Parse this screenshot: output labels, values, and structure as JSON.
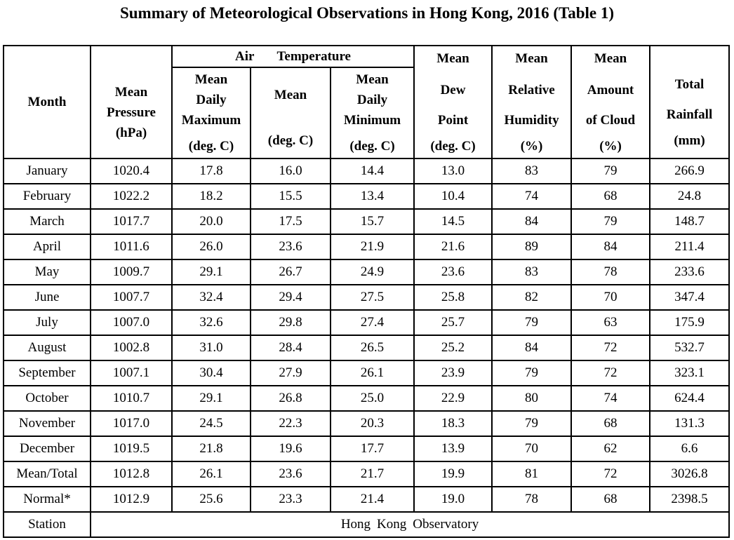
{
  "title": "Summary of Meteorological Observations in Hong Kong, 2016 (Table 1)",
  "headers": {
    "month": "Month",
    "pressure": [
      "Mean",
      "Pressure",
      "(hPa)"
    ],
    "air_temperature_words": [
      "Air",
      "Temperature"
    ],
    "max_temp": [
      "Mean",
      "Daily",
      "Maximum",
      "(deg. C)"
    ],
    "mean_temp": [
      "Mean",
      "(deg. C)"
    ],
    "min_temp": [
      "Mean",
      "Daily",
      "Minimum",
      "(deg. C)"
    ],
    "dew_point": [
      "Mean",
      "Dew",
      "Point",
      "(deg. C)"
    ],
    "humidity": [
      "Mean",
      "Relative",
      "Humidity",
      "(%)"
    ],
    "cloud": [
      "Mean",
      "Amount",
      "of Cloud",
      "(%)"
    ],
    "rainfall": [
      "Total",
      "Rainfall",
      "(mm)"
    ]
  },
  "rows": [
    [
      "January",
      "1020.4",
      "17.8",
      "16.0",
      "14.4",
      "13.0",
      "83",
      "79",
      "266.9"
    ],
    [
      "February",
      "1022.2",
      "18.2",
      "15.5",
      "13.4",
      "10.4",
      "74",
      "68",
      "24.8"
    ],
    [
      "March",
      "1017.7",
      "20.0",
      "17.5",
      "15.7",
      "14.5",
      "84",
      "79",
      "148.7"
    ],
    [
      "April",
      "1011.6",
      "26.0",
      "23.6",
      "21.9",
      "21.6",
      "89",
      "84",
      "211.4"
    ],
    [
      "May",
      "1009.7",
      "29.1",
      "26.7",
      "24.9",
      "23.6",
      "83",
      "78",
      "233.6"
    ],
    [
      "June",
      "1007.7",
      "32.4",
      "29.4",
      "27.5",
      "25.8",
      "82",
      "70",
      "347.4"
    ],
    [
      "July",
      "1007.0",
      "32.6",
      "29.8",
      "27.4",
      "25.7",
      "79",
      "63",
      "175.9"
    ],
    [
      "August",
      "1002.8",
      "31.0",
      "28.4",
      "26.5",
      "25.2",
      "84",
      "72",
      "532.7"
    ],
    [
      "September",
      "1007.1",
      "30.4",
      "27.9",
      "26.1",
      "23.9",
      "79",
      "72",
      "323.1"
    ],
    [
      "October",
      "1010.7",
      "29.1",
      "26.8",
      "25.0",
      "22.9",
      "80",
      "74",
      "624.4"
    ],
    [
      "November",
      "1017.0",
      "24.5",
      "22.3",
      "20.3",
      "18.3",
      "79",
      "68",
      "131.3"
    ],
    [
      "December",
      "1019.5",
      "21.8",
      "19.6",
      "17.7",
      "13.9",
      "70",
      "62",
      "6.6"
    ],
    [
      "Mean/Total",
      "1012.8",
      "26.1",
      "23.6",
      "21.7",
      "19.9",
      "81",
      "72",
      "3026.8"
    ],
    [
      "Normal*",
      "1012.9",
      "25.6",
      "23.3",
      "21.4",
      "19.0",
      "78",
      "68",
      "2398.5"
    ]
  ],
  "station": {
    "label": "Station",
    "value_words": [
      "Hong",
      "Kong",
      "Observatory"
    ]
  }
}
